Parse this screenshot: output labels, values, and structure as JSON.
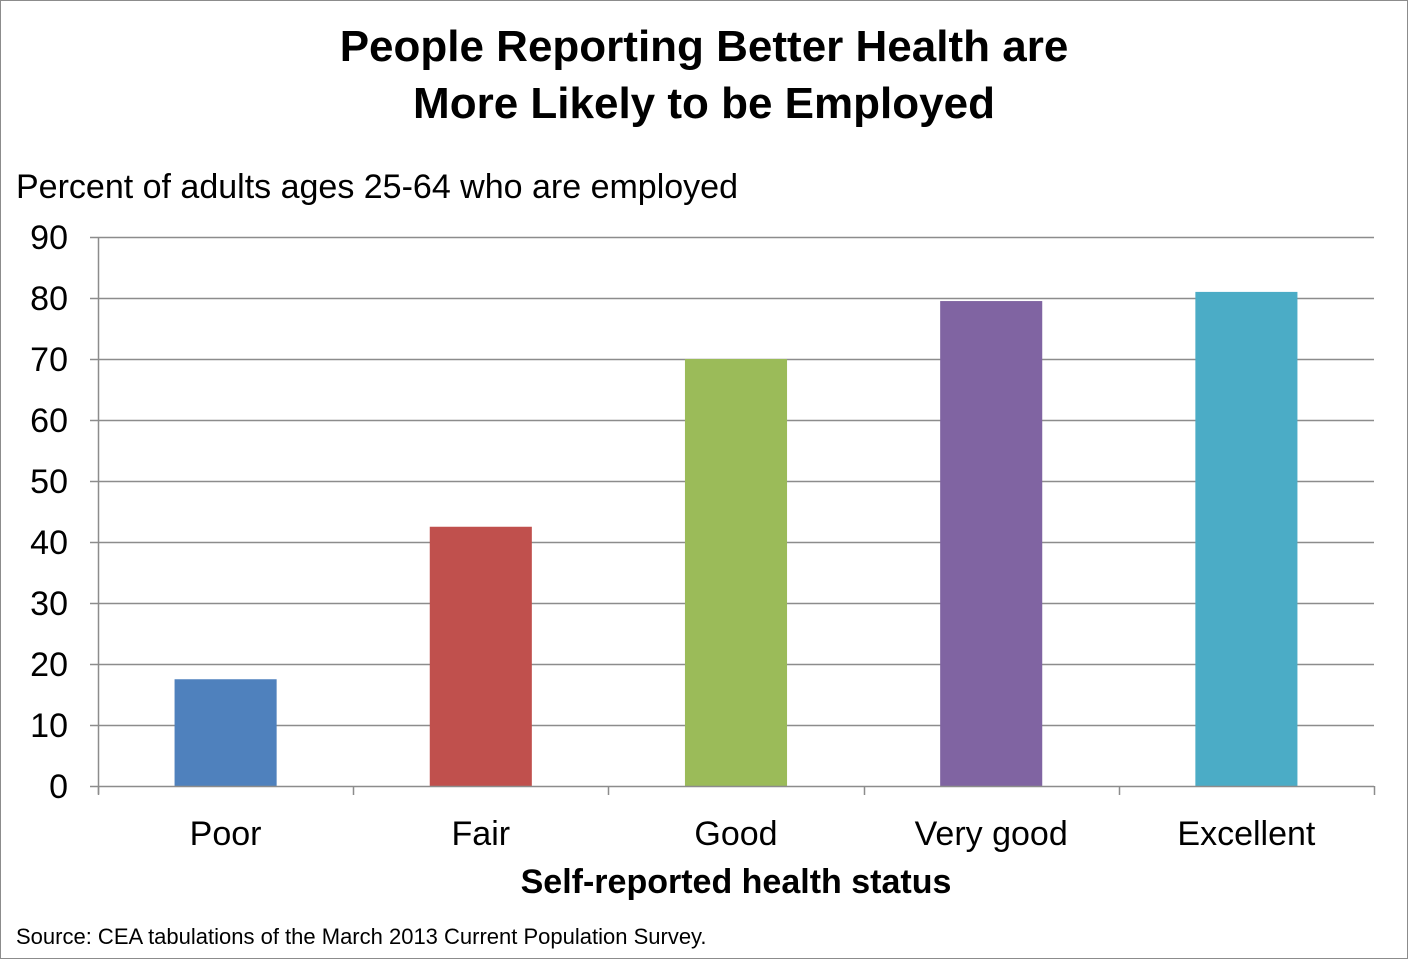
{
  "title_line1": "People Reporting Better Health are",
  "title_line2": "More Likely to be Employed",
  "source": "Source: CEA tabulations of the March 2013 Current Population Survey.",
  "chart_data": {
    "type": "bar",
    "title": "People Reporting Better Health are More Likely to be Employed",
    "ylabel": "Percent of adults ages 25-64 who are employed",
    "xlabel": "Self-reported health status",
    "categories": [
      "Poor",
      "Fair",
      "Good",
      "Very good",
      "Excellent"
    ],
    "values": [
      17.5,
      42.5,
      70,
      79.5,
      81
    ],
    "colors": [
      "#4f81bd",
      "#c0504d",
      "#9bbb59",
      "#8064a2",
      "#4bacc6"
    ],
    "ylim": [
      0,
      90
    ],
    "yticks": [
      0,
      10,
      20,
      30,
      40,
      50,
      60,
      70,
      80,
      90
    ],
    "grid": true,
    "legend": "none"
  }
}
